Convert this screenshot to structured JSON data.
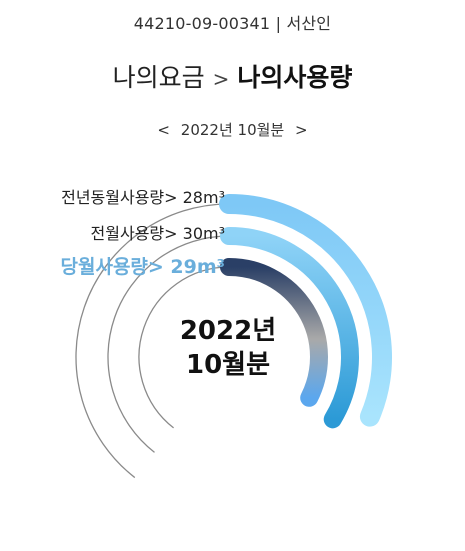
{
  "header": {
    "account_line": "44210-09-00341 | 서산인",
    "breadcrumb_parent": "나의요금",
    "breadcrumb_separator": ">",
    "breadcrumb_current": "나의사용량"
  },
  "period": {
    "prev_arrow": "<",
    "label": "2022년 10월분",
    "next_arrow": ">"
  },
  "center": {
    "year": "2022년",
    "month": "10월분"
  },
  "chart_data": {
    "type": "radial-bar",
    "unit": "m³",
    "series": [
      {
        "name": "전년동월사용량",
        "value": 28,
        "label": "전년동월사용량> 28m³",
        "colors": [
          "#7ec8f6",
          "#a9e4fd"
        ]
      },
      {
        "name": "전월사용량",
        "value": 30,
        "label": "전월사용량> 30m³",
        "colors": [
          "#8fd3f7",
          "#2c9ad6"
        ]
      },
      {
        "name": "당월사용량",
        "value": 29,
        "label": "당월사용량> 29m³",
        "colors": [
          "#2a3f66",
          "#a9a9a9",
          "#5ba7ee"
        ]
      }
    ]
  }
}
